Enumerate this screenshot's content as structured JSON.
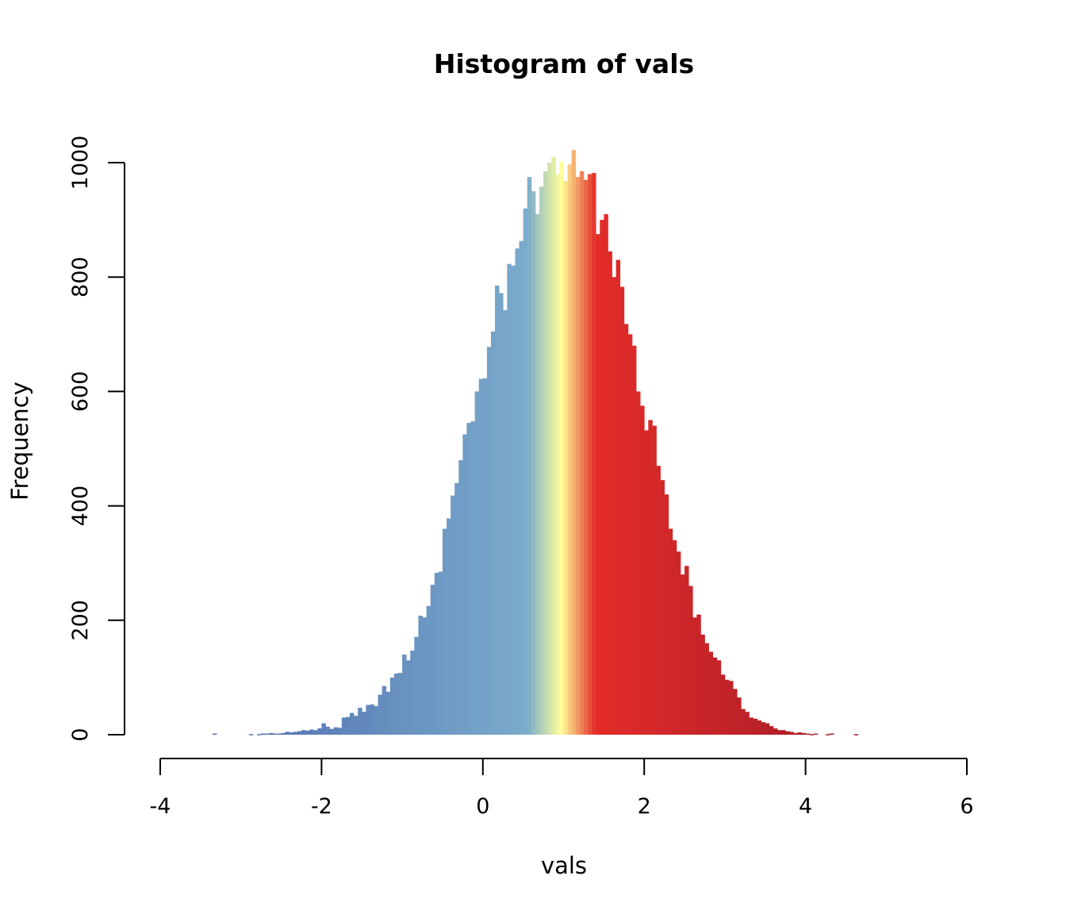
{
  "chart_data": {
    "type": "bar",
    "title": "Histogram of vals",
    "xlabel": "vals",
    "ylabel": "Frequency",
    "xlim": [
      -4,
      6
    ],
    "ylim": [
      0,
      1000
    ],
    "x_ticks": [
      "-4",
      "-2",
      "0",
      "2",
      "4",
      "6"
    ],
    "y_ticks": [
      "0",
      "200",
      "400",
      "600",
      "800",
      "1000"
    ],
    "bin_width": 0.05,
    "bins_start": -3.35,
    "frequencies": [
      2,
      0,
      0,
      0,
      0,
      0,
      0,
      0,
      0,
      1,
      0,
      1,
      2,
      2,
      3,
      2,
      2,
      3,
      5,
      4,
      5,
      6,
      8,
      7,
      9,
      8,
      11,
      20,
      14,
      10,
      13,
      12,
      30,
      31,
      38,
      33,
      47,
      40,
      52,
      53,
      50,
      70,
      85,
      75,
      100,
      107,
      108,
      140,
      130,
      147,
      171,
      208,
      205,
      225,
      262,
      283,
      285,
      360,
      378,
      418,
      440,
      480,
      525,
      545,
      548,
      600,
      622,
      623,
      678,
      705,
      785,
      772,
      742,
      823,
      820,
      850,
      863,
      920,
      975,
      950,
      910,
      958,
      985,
      1000,
      1010,
      980,
      1002,
      968,
      997,
      1022,
      975,
      985,
      970,
      980,
      982,
      875,
      900,
      910,
      845,
      800,
      830,
      783,
      718,
      700,
      680,
      600,
      575,
      532,
      550,
      540,
      470,
      445,
      420,
      360,
      340,
      320,
      280,
      295,
      260,
      205,
      210,
      175,
      160,
      145,
      135,
      130,
      105,
      96,
      94,
      80,
      65,
      45,
      40,
      30,
      28,
      25,
      22,
      20,
      15,
      11,
      8,
      8,
      6,
      5,
      3,
      4,
      3,
      2,
      1,
      2,
      0,
      0,
      1,
      2,
      0,
      0,
      0,
      0,
      0,
      1
    ],
    "colors": {
      "left": "#4d69ad",
      "mid_blue": "#7aabcc",
      "center": "#ffff9a",
      "mid_red": "#e42c29",
      "right": "#9a1a28"
    }
  }
}
